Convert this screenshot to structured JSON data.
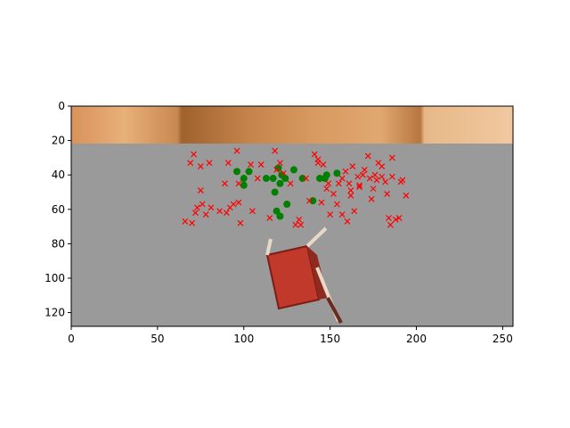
{
  "chart_data": {
    "type": "scatter",
    "title": "",
    "xlabel": "",
    "ylabel": "",
    "xlim": [
      0,
      256
    ],
    "ylim": [
      128,
      0
    ],
    "y_inverted": true,
    "grid": false,
    "legend": "none",
    "xticks": [
      0,
      50,
      100,
      150,
      200,
      250
    ],
    "yticks": [
      0,
      20,
      40,
      60,
      80,
      100,
      120
    ],
    "background_image": {
      "description": "image of floor with wooden wall strip and red chair",
      "colors": {
        "floor": "#9a9a9a",
        "wall": "#c98850",
        "chair": "#c0392b"
      }
    },
    "series": [
      {
        "marker": "o",
        "color": "#008000",
        "points": [
          [
            96,
            38
          ],
          [
            100,
            42
          ],
          [
            100,
            46
          ],
          [
            103,
            38
          ],
          [
            113,
            42
          ],
          [
            117,
            42
          ],
          [
            118,
            50
          ],
          [
            120,
            36
          ],
          [
            121,
            45
          ],
          [
            122,
            40
          ],
          [
            124,
            42
          ],
          [
            129,
            37
          ],
          [
            134,
            42
          ],
          [
            140,
            55
          ],
          [
            144,
            42
          ],
          [
            147,
            42
          ],
          [
            148,
            40
          ],
          [
            154,
            39
          ],
          [
            119,
            61
          ],
          [
            121,
            64
          ],
          [
            125,
            57
          ]
        ]
      },
      {
        "marker": "x",
        "color": "#ff0000",
        "points": [
          [
            66,
            67
          ],
          [
            69,
            33
          ],
          [
            70,
            68
          ],
          [
            71,
            28
          ],
          [
            72,
            62
          ],
          [
            73,
            59
          ],
          [
            75,
            49
          ],
          [
            75,
            35
          ],
          [
            76,
            57
          ],
          [
            78,
            63
          ],
          [
            80,
            33
          ],
          [
            81,
            59
          ],
          [
            86,
            61
          ],
          [
            89,
            45
          ],
          [
            90,
            62
          ],
          [
            91,
            33
          ],
          [
            92,
            59
          ],
          [
            94,
            57
          ],
          [
            96,
            26
          ],
          [
            97,
            45
          ],
          [
            97,
            56
          ],
          [
            98,
            68
          ],
          [
            104,
            34
          ],
          [
            105,
            61
          ],
          [
            108,
            42
          ],
          [
            110,
            34
          ],
          [
            115,
            65
          ],
          [
            118,
            26
          ],
          [
            119,
            37
          ],
          [
            121,
            33
          ],
          [
            123,
            39
          ],
          [
            127,
            45
          ],
          [
            130,
            69
          ],
          [
            132,
            66
          ],
          [
            133,
            69
          ],
          [
            138,
            55
          ],
          [
            141,
            28
          ],
          [
            143,
            31
          ],
          [
            143,
            33
          ],
          [
            145,
            56
          ],
          [
            146,
            34
          ],
          [
            148,
            48
          ],
          [
            149,
            45
          ],
          [
            150,
            63
          ],
          [
            152,
            51
          ],
          [
            154,
            57
          ],
          [
            155,
            45
          ],
          [
            157,
            42
          ],
          [
            157,
            63
          ],
          [
            159,
            38
          ],
          [
            160,
            67
          ],
          [
            162,
            52
          ],
          [
            163,
            35
          ],
          [
            164,
            61
          ],
          [
            166,
            41
          ],
          [
            167,
            46
          ],
          [
            169,
            40
          ],
          [
            170,
            37
          ],
          [
            172,
            29
          ],
          [
            173,
            42
          ],
          [
            174,
            54
          ],
          [
            175,
            48
          ],
          [
            176,
            40
          ],
          [
            177,
            43
          ],
          [
            178,
            33
          ],
          [
            180,
            35
          ],
          [
            180,
            41
          ],
          [
            182,
            44
          ],
          [
            183,
            51
          ],
          [
            184,
            65
          ],
          [
            185,
            69
          ],
          [
            186,
            30
          ],
          [
            188,
            66
          ],
          [
            190,
            65
          ],
          [
            191,
            44
          ],
          [
            192,
            43
          ],
          [
            194,
            52
          ],
          [
            186,
            41
          ],
          [
            161,
            45
          ],
          [
            162,
            49
          ],
          [
            136,
            42
          ],
          [
            167,
            47
          ]
        ]
      }
    ]
  }
}
